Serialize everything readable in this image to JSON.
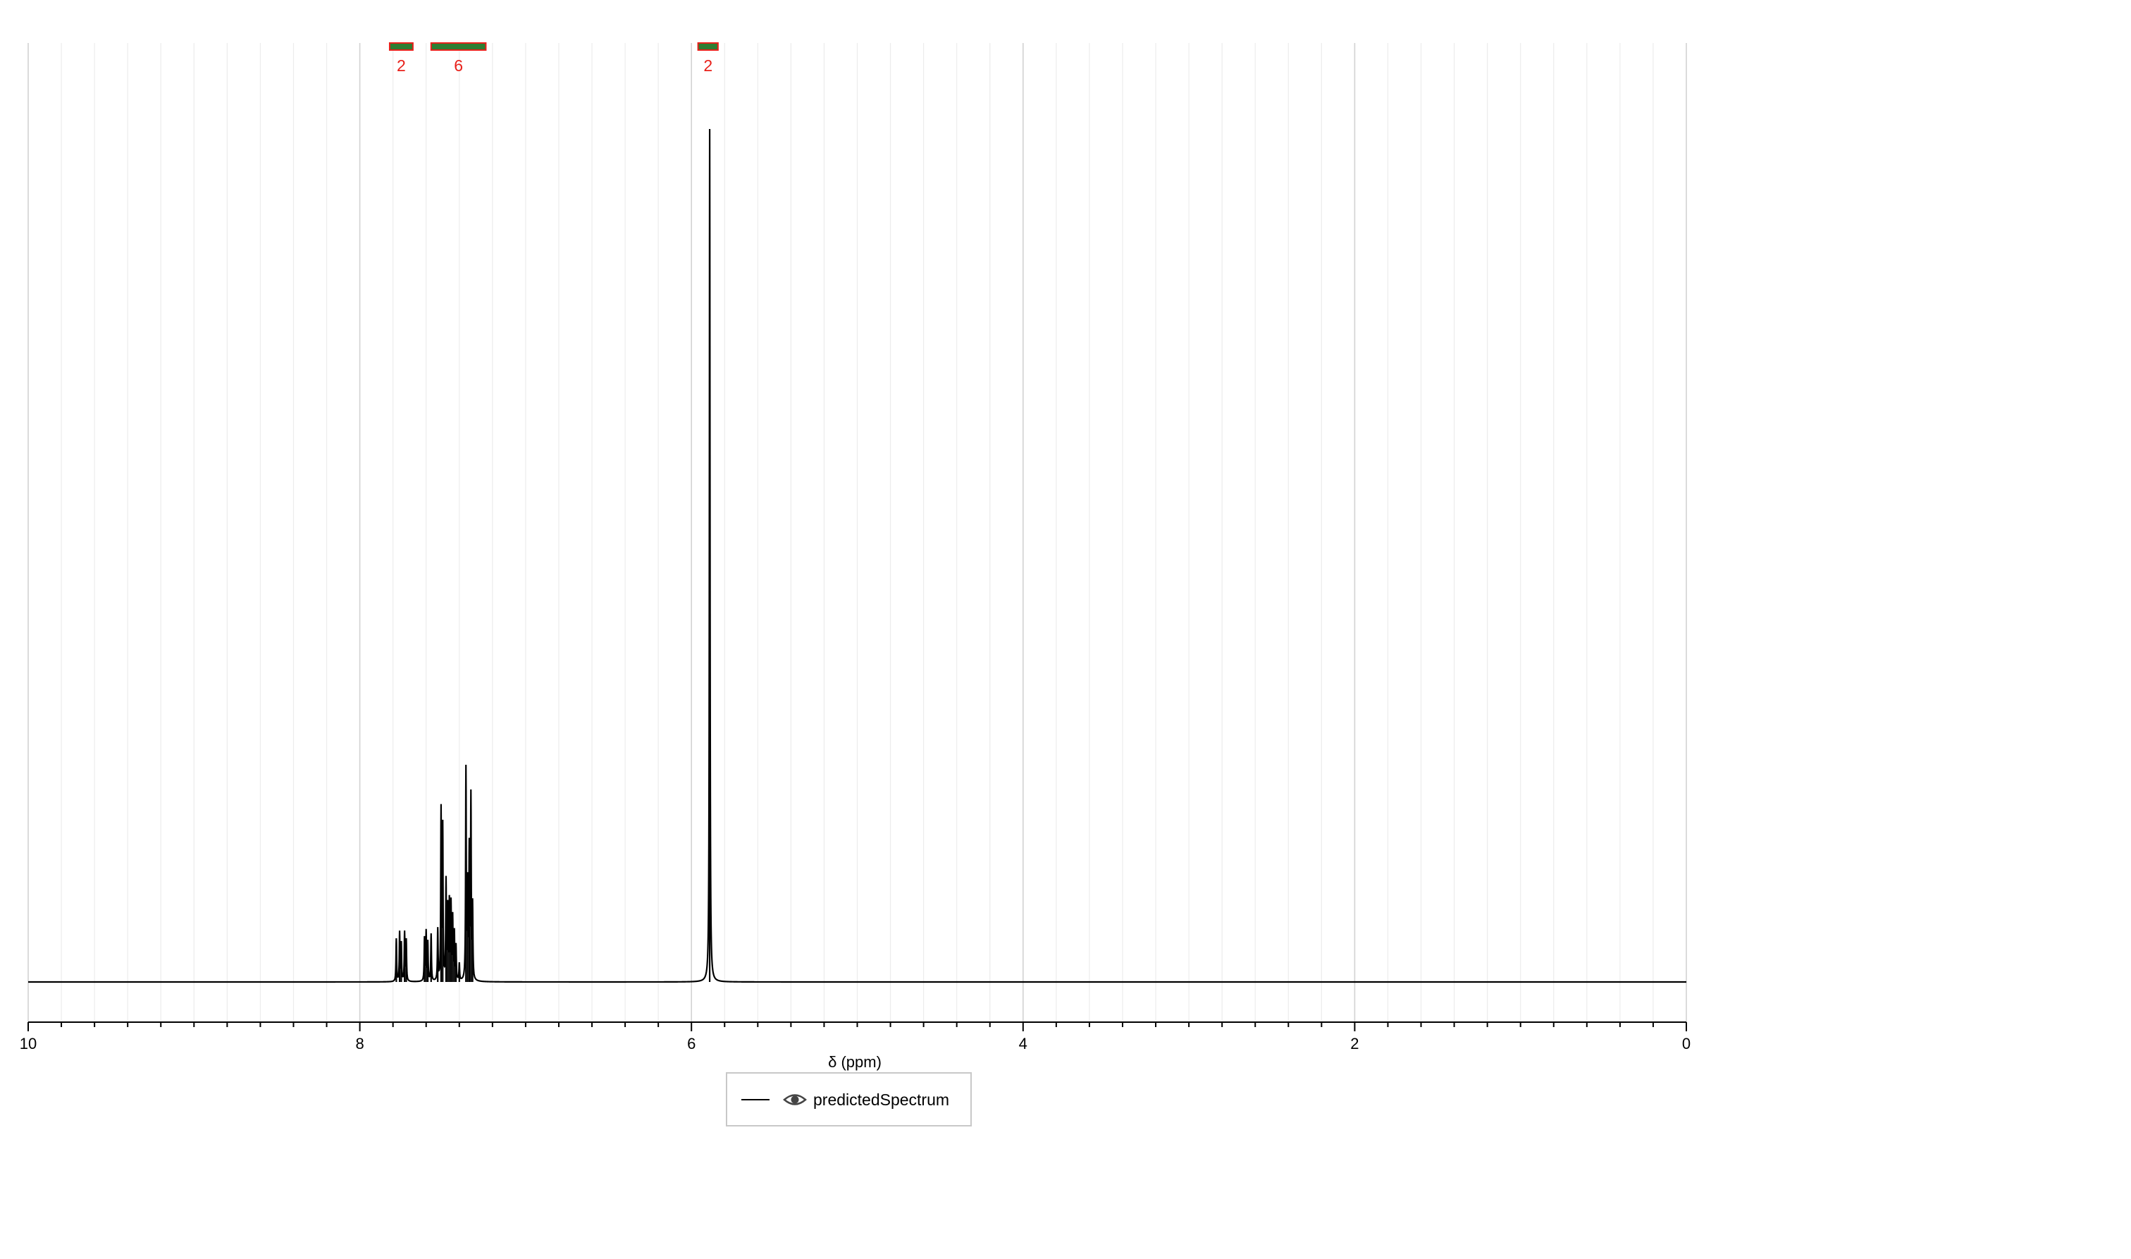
{
  "chart_data": {
    "type": "line",
    "xlabel": "δ (ppm)",
    "xlim": [
      10,
      0
    ],
    "x_reversed": true,
    "major_ticks": [
      10,
      8,
      6,
      4,
      2,
      0
    ],
    "tick_labels": [
      "10",
      "8",
      "6",
      "4",
      "2",
      "0"
    ],
    "grid": true,
    "legend_placement": "bottom-center",
    "series": [
      {
        "name": "predictedSpectrum",
        "color": "#000000",
        "legend_icon": "eye-icon",
        "peaks": [
          {
            "x": 7.78,
            "y": 0.05
          },
          {
            "x": 7.76,
            "y": 0.057
          },
          {
            "x": 7.75,
            "y": 0.044
          },
          {
            "x": 7.73,
            "y": 0.057
          },
          {
            "x": 7.72,
            "y": 0.048
          },
          {
            "x": 7.61,
            "y": 0.05
          },
          {
            "x": 7.6,
            "y": 0.057
          },
          {
            "x": 7.59,
            "y": 0.045
          },
          {
            "x": 7.57,
            "y": 0.055
          },
          {
            "x": 7.53,
            "y": 0.06
          },
          {
            "x": 7.51,
            "y": 0.198
          },
          {
            "x": 7.5,
            "y": 0.178
          },
          {
            "x": 7.48,
            "y": 0.115
          },
          {
            "x": 7.47,
            "y": 0.083
          },
          {
            "x": 7.46,
            "y": 0.09
          },
          {
            "x": 7.45,
            "y": 0.088
          },
          {
            "x": 7.44,
            "y": 0.072
          },
          {
            "x": 7.43,
            "y": 0.055
          },
          {
            "x": 7.42,
            "y": 0.04
          },
          {
            "x": 7.4,
            "y": 0.02
          },
          {
            "x": 7.36,
            "y": 0.246
          },
          {
            "x": 7.35,
            "y": 0.107
          },
          {
            "x": 7.34,
            "y": 0.15
          },
          {
            "x": 7.33,
            "y": 0.212
          },
          {
            "x": 7.32,
            "y": 0.085
          },
          {
            "x": 5.89,
            "y": 1.0
          }
        ]
      }
    ],
    "integrals": [
      {
        "from": 7.82,
        "to": 7.68,
        "label": "2"
      },
      {
        "from": 7.57,
        "to": 7.24,
        "label": "6"
      },
      {
        "from": 5.96,
        "to": 5.84,
        "label": "2"
      }
    ],
    "integral_color": "#2e7d32",
    "integral_border": "#e8201a"
  }
}
